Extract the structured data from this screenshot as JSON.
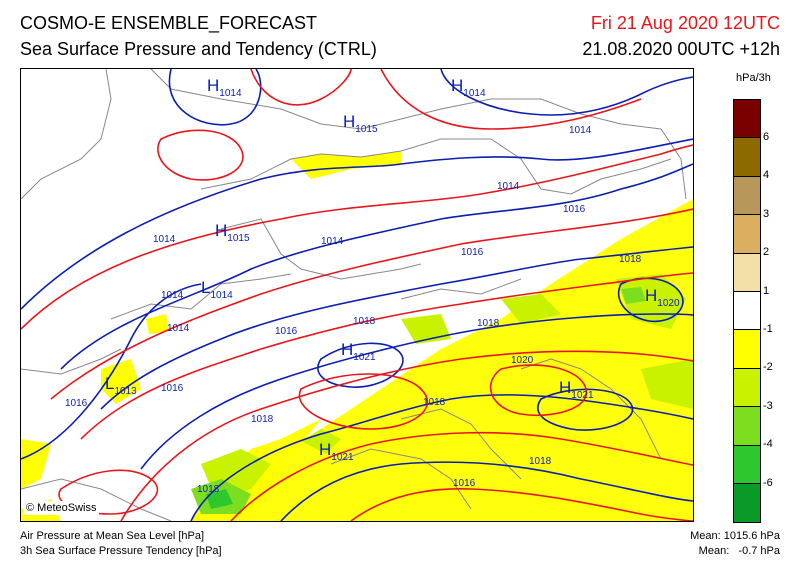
{
  "header": {
    "title": "COSMO-E ENSEMBLE_FORECAST",
    "subtitle": "Sea Surface Pressure and Tendency (CTRL)",
    "valid_time": "Fri 21 Aug 2020 12UTC",
    "run_time": "21.08.2020 00UTC +12h"
  },
  "colors": {
    "isobar_blue": "#0a1eb4",
    "isobar_red": "#e8161b",
    "border_grey": "#888888",
    "tendency_yellow": "#ffff00"
  },
  "legend": {
    "unit": "hPa/3h",
    "bins": [
      {
        "color": "#7a0000"
      },
      {
        "color": "#8c6a00"
      },
      {
        "color": "#b8975a"
      },
      {
        "color": "#dab060"
      },
      {
        "color": "#f3dfa8"
      },
      {
        "color": "#ffffff"
      },
      {
        "color": "#ffff00"
      },
      {
        "color": "#c8f200"
      },
      {
        "color": "#7cde1e"
      },
      {
        "color": "#2ec82e"
      },
      {
        "color": "#0a9a28"
      }
    ],
    "ticks": [
      "6",
      "4",
      "3",
      "2",
      "1",
      "-1",
      "-2",
      "-3",
      "-4",
      "-6"
    ]
  },
  "map": {
    "pressure_centers": [
      {
        "type": "H",
        "value": "1014"
      },
      {
        "type": "H",
        "value": "1014"
      },
      {
        "type": "H",
        "value": "1015"
      },
      {
        "type": "H",
        "value": "1015"
      },
      {
        "type": "L",
        "value": "1014"
      },
      {
        "type": "L",
        "value": "1013"
      },
      {
        "type": "H",
        "value": "1021"
      },
      {
        "type": "H",
        "value": "1020"
      },
      {
        "type": "H",
        "value": "1021"
      },
      {
        "type": "H",
        "value": "1021"
      }
    ],
    "isobar_labels": [
      "1014",
      "1014",
      "1014",
      "1016",
      "1018",
      "1014",
      "1014",
      "1016",
      "1016",
      "1018",
      "1014",
      "1016",
      "1016",
      "1018",
      "1018",
      "1020",
      "1018",
      "1018",
      "1018",
      "1016"
    ]
  },
  "copyright": "© MeteoSwiss",
  "footer": {
    "line1": "Air Pressure at Mean Sea Level [hPa]",
    "line2": "3h Sea Surface Pressure Tendency [hPa]",
    "mean_pressure": "Mean: 1015.6 hPa",
    "mean_tendency": "Mean:   -0.7 hPa"
  }
}
